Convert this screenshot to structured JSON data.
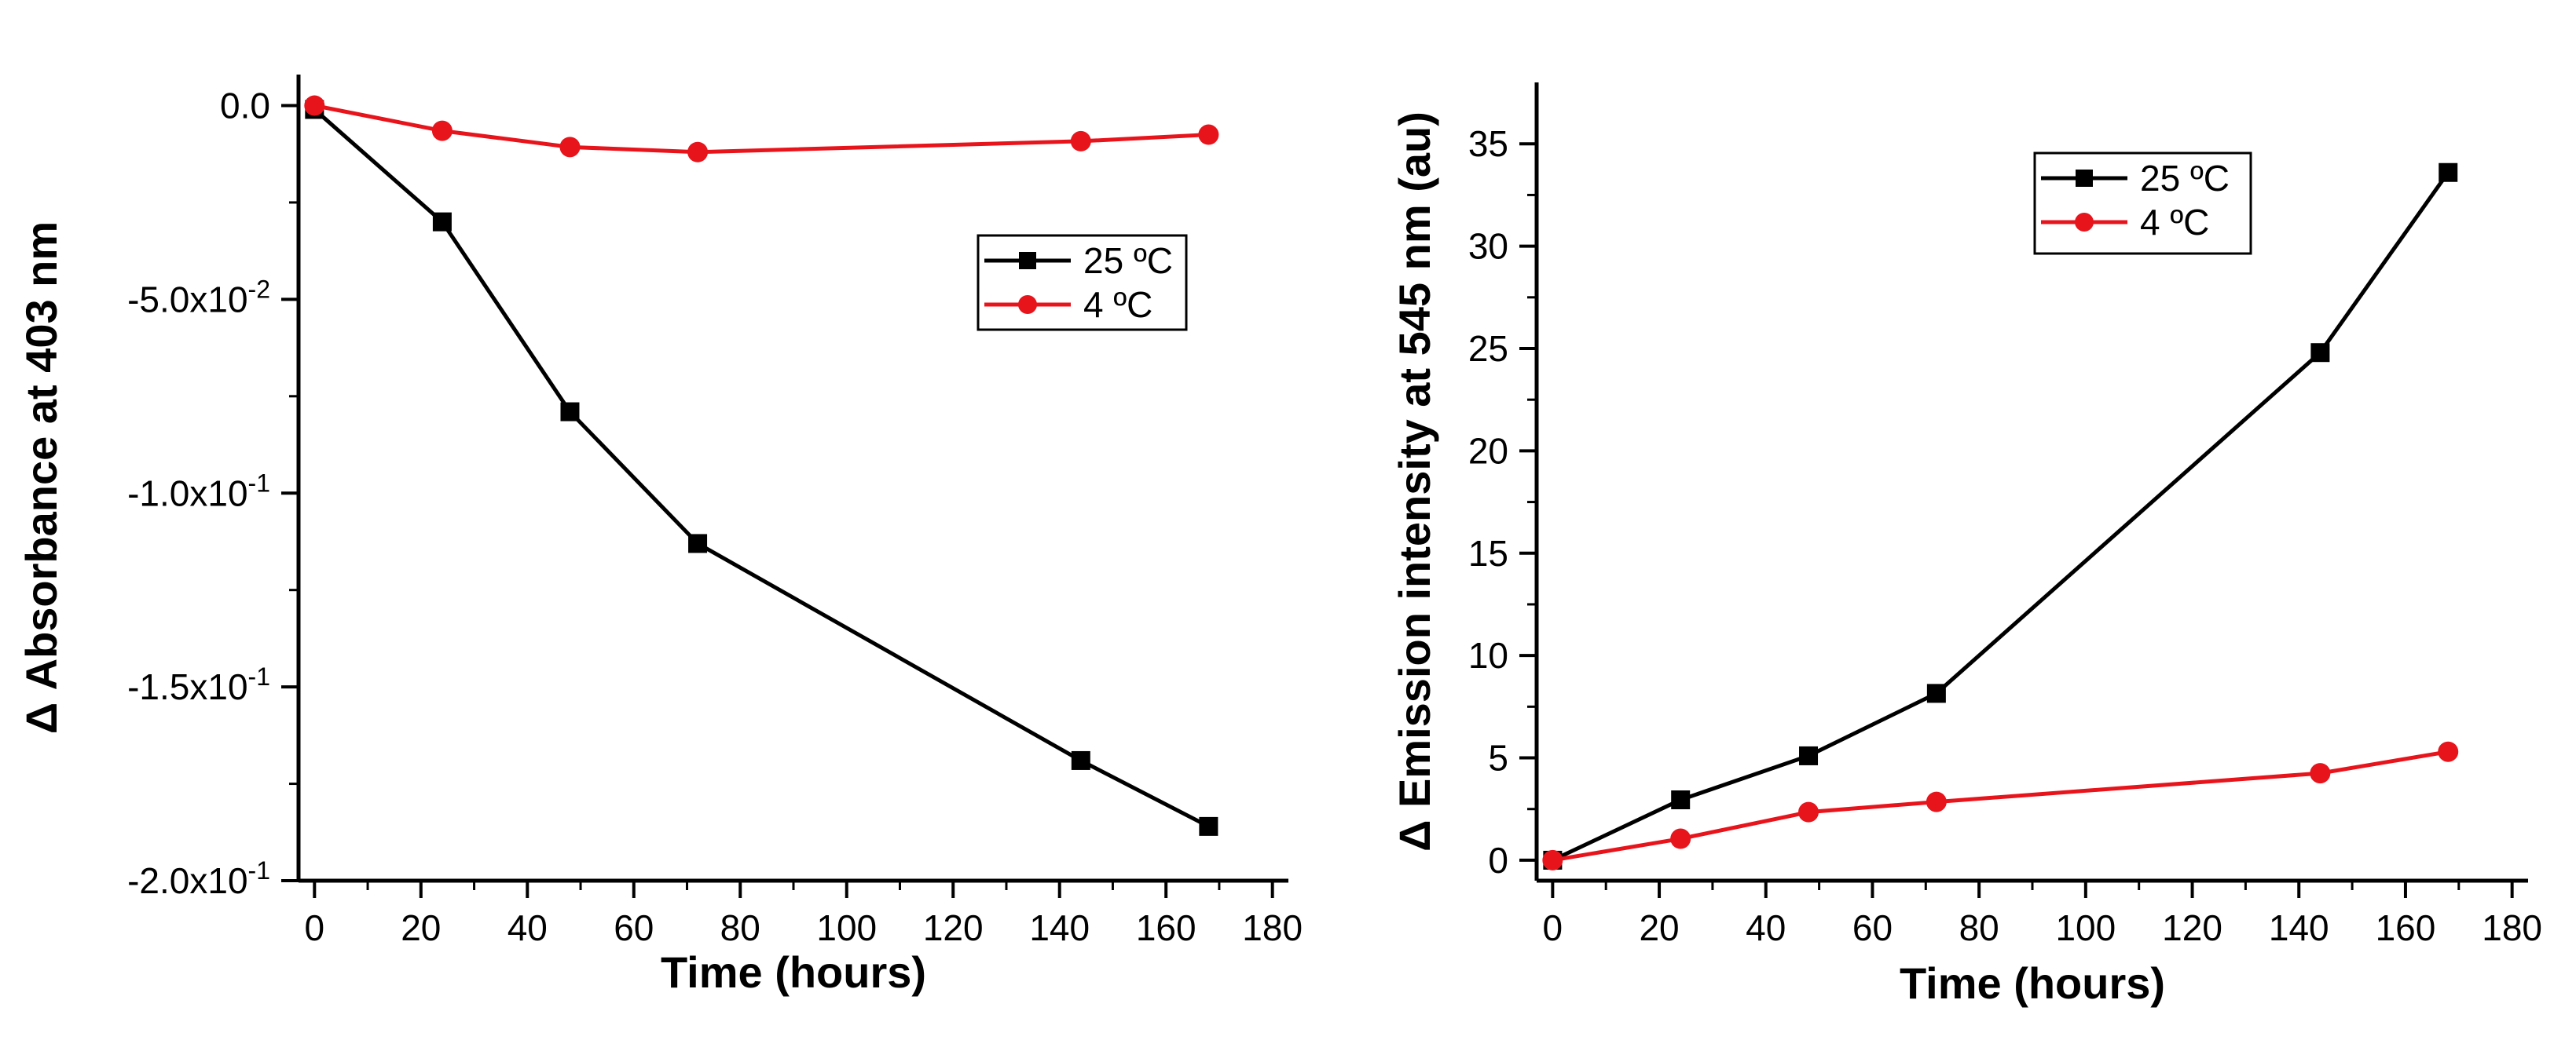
{
  "chart_data": [
    {
      "type": "line",
      "title": "",
      "xlabel": "Time (hours)",
      "ylabel": "Δ Absorbance at 403 nm",
      "xlim": [
        -3,
        183
      ],
      "ylim": [
        -0.2,
        0.008
      ],
      "x_ticks": [
        0,
        20,
        40,
        60,
        80,
        100,
        120,
        140,
        160,
        180
      ],
      "y_ticks": [
        {
          "value": 0.0,
          "mantissa": "0.0",
          "exp": ""
        },
        {
          "value": -0.05,
          "mantissa": "-5.0x10",
          "exp": "-2"
        },
        {
          "value": -0.1,
          "mantissa": "-1.0x10",
          "exp": "-1"
        },
        {
          "value": -0.15,
          "mantissa": "-1.5x10",
          "exp": "-1"
        },
        {
          "value": -0.2,
          "mantissa": "-2.0x10",
          "exp": "-1"
        }
      ],
      "legend_position": "upper-right",
      "series": [
        {
          "name": "25 ºC",
          "color": "#000000",
          "marker": "square",
          "x": [
            0,
            24,
            48,
            72,
            144,
            168
          ],
          "y": [
            -0.001,
            -0.03,
            -0.079,
            -0.113,
            -0.169,
            -0.186
          ]
        },
        {
          "name": "4 ºC",
          "color": "#e8141c",
          "marker": "circle",
          "x": [
            0,
            24,
            48,
            72,
            144,
            168
          ],
          "y": [
            0.0,
            -0.0065,
            -0.0107,
            -0.012,
            -0.0092,
            -0.0075
          ]
        }
      ]
    },
    {
      "type": "line",
      "title": "",
      "xlabel": "Time (hours)",
      "ylabel": "Δ Emission intensity at 545 nm (au)",
      "xlim": [
        -3,
        183
      ],
      "ylim": [
        -1,
        38
      ],
      "x_ticks": [
        0,
        20,
        40,
        60,
        80,
        100,
        120,
        140,
        160,
        180
      ],
      "y_ticks": [
        {
          "value": 0,
          "mantissa": "0",
          "exp": ""
        },
        {
          "value": 5,
          "mantissa": "5",
          "exp": ""
        },
        {
          "value": 10,
          "mantissa": "10",
          "exp": ""
        },
        {
          "value": 15,
          "mantissa": "15",
          "exp": ""
        },
        {
          "value": 20,
          "mantissa": "20",
          "exp": ""
        },
        {
          "value": 25,
          "mantissa": "25",
          "exp": ""
        },
        {
          "value": 30,
          "mantissa": "30",
          "exp": ""
        },
        {
          "value": 35,
          "mantissa": "35",
          "exp": ""
        }
      ],
      "legend_position": "upper-right",
      "series": [
        {
          "name": "25 ºC",
          "color": "#000000",
          "marker": "square",
          "x": [
            0,
            24,
            48,
            72,
            144,
            168
          ],
          "y": [
            0.0,
            2.95,
            5.1,
            8.15,
            24.8,
            33.6
          ]
        },
        {
          "name": "4 ºC",
          "color": "#e8141c",
          "marker": "circle",
          "x": [
            0,
            24,
            48,
            72,
            144,
            168
          ],
          "y": [
            0.0,
            1.05,
            2.35,
            2.85,
            4.25,
            5.3
          ]
        }
      ]
    }
  ]
}
